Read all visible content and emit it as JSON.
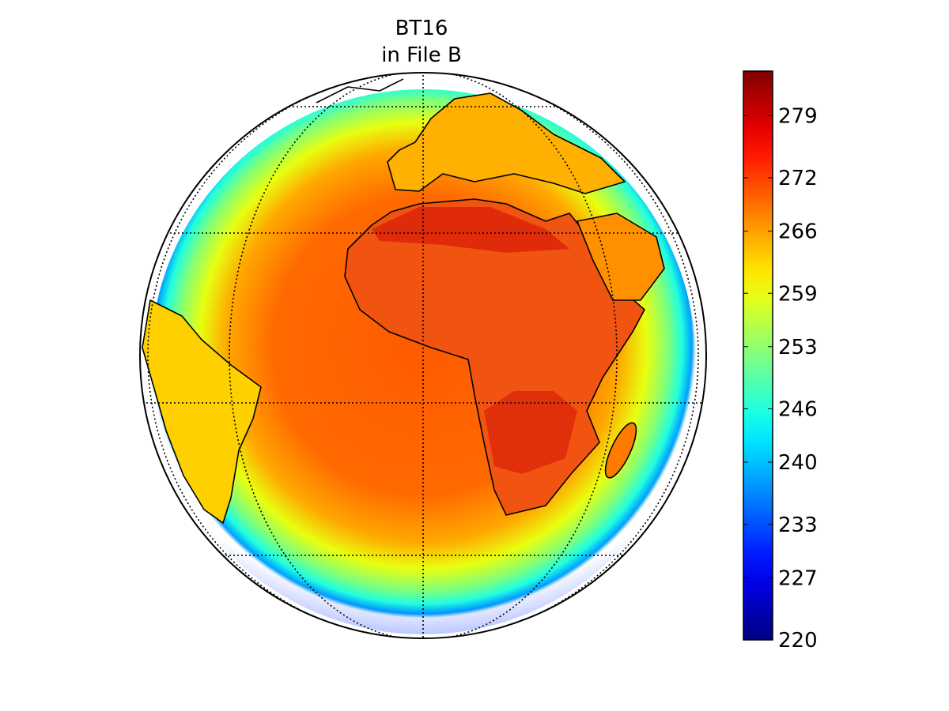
{
  "title": [
    "BT16",
    "in File B"
  ],
  "colorbar": {
    "lim": [
      220,
      284
    ],
    "ticks": [
      220,
      227,
      233,
      240,
      246,
      253,
      259,
      266,
      272,
      279
    ]
  }
}
